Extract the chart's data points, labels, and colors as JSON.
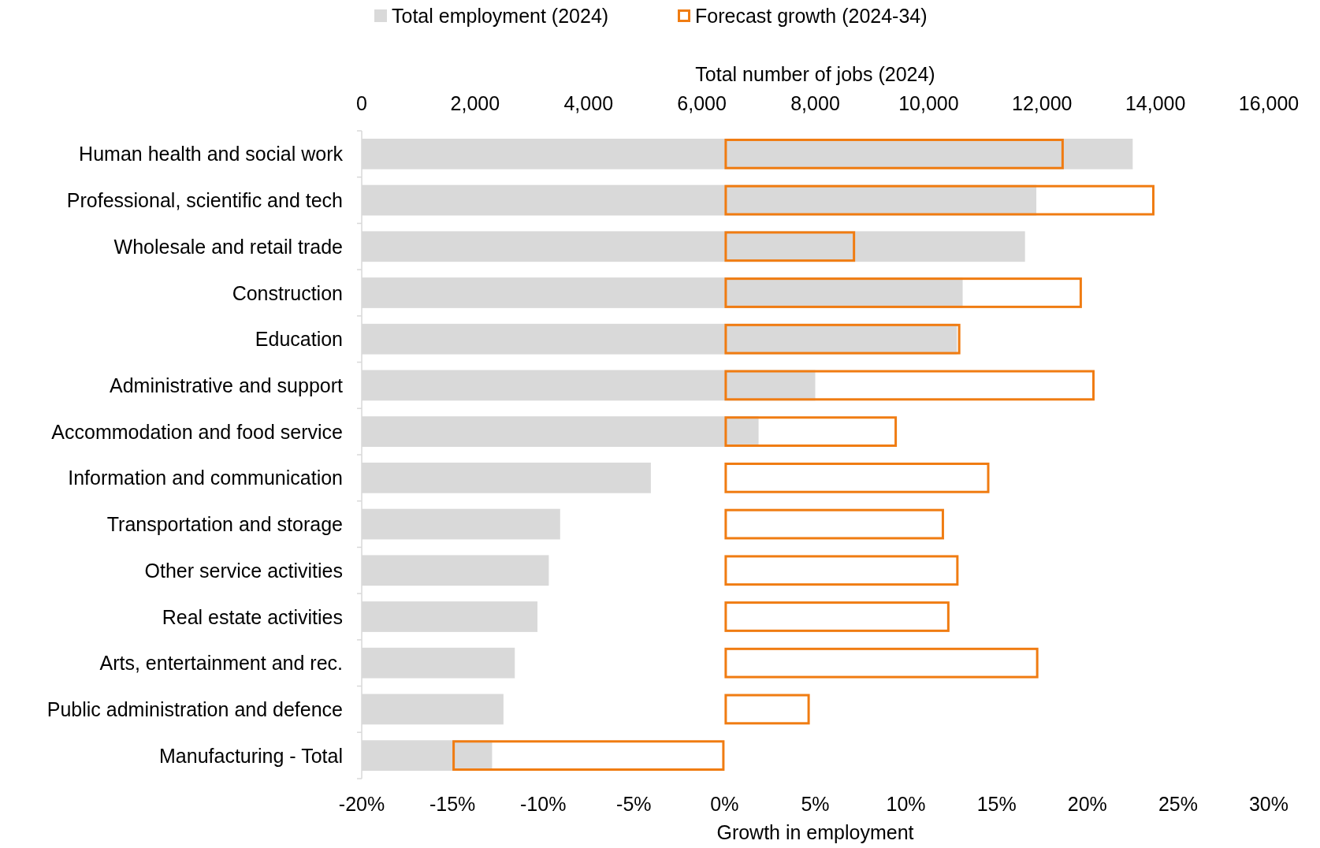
{
  "chart_data": {
    "type": "bar",
    "orientation": "horizontal",
    "legend": "top",
    "xlabel": "Growth in employment",
    "x2label": "Total number of jobs (2024)",
    "categories": [
      "Human health and social work",
      "Professional, scientific and tech",
      "Wholesale and retail trade",
      "Construction",
      "Education",
      "Administrative and support",
      "Accommodation and food service",
      "Information and communication",
      "Transportation and storage",
      "Other service activities",
      "Real estate activities",
      "Arts, entertainment and rec.",
      "Public administration and defence",
      "Manufacturing - Total"
    ],
    "xlim": [
      -20,
      30
    ],
    "xticks": [
      {
        "value": -20,
        "label": "-20%"
      },
      {
        "value": -15,
        "label": "-15%"
      },
      {
        "value": -10,
        "label": "-10%"
      },
      {
        "value": -5,
        "label": "-5%"
      },
      {
        "value": 0,
        "label": "0%"
      },
      {
        "value": 5,
        "label": "5%"
      },
      {
        "value": 10,
        "label": "10%"
      },
      {
        "value": 15,
        "label": "15%"
      },
      {
        "value": 20,
        "label": "20%"
      },
      {
        "value": 25,
        "label": "25%"
      },
      {
        "value": 30,
        "label": "30%"
      }
    ],
    "x2lim": [
      0,
      16000
    ],
    "x2ticks": [
      0,
      {
        "value": 2000,
        "label": "2,000"
      },
      {
        "value": 4000,
        "label": "4,000"
      },
      {
        "value": 6000,
        "label": "6,000"
      },
      {
        "value": 8000,
        "label": "8,000"
      },
      {
        "value": 10000,
        "label": "10,000"
      },
      {
        "value": 12000,
        "label": "12,000"
      },
      {
        "value": 14000,
        "label": "14,000"
      },
      {
        "value": 16000,
        "label": "16,000"
      }
    ],
    "series": [
      {
        "name": "Total employment (2024)",
        "color": "#d9d9d9",
        "axis": "x2",
        "values": [
          13600,
          11900,
          11700,
          10600,
          10500,
          8000,
          7000,
          5100,
          3500,
          3300,
          3100,
          2700,
          2500,
          2300
        ]
      },
      {
        "name": "Forecast growth (2024-34)",
        "color": "#f07c12",
        "values": [
          18.7,
          23.7,
          7.2,
          19.7,
          13.0,
          20.4,
          9.5,
          14.6,
          12.1,
          12.9,
          12.4,
          17.3,
          4.7,
          -15.0
        ]
      }
    ]
  }
}
